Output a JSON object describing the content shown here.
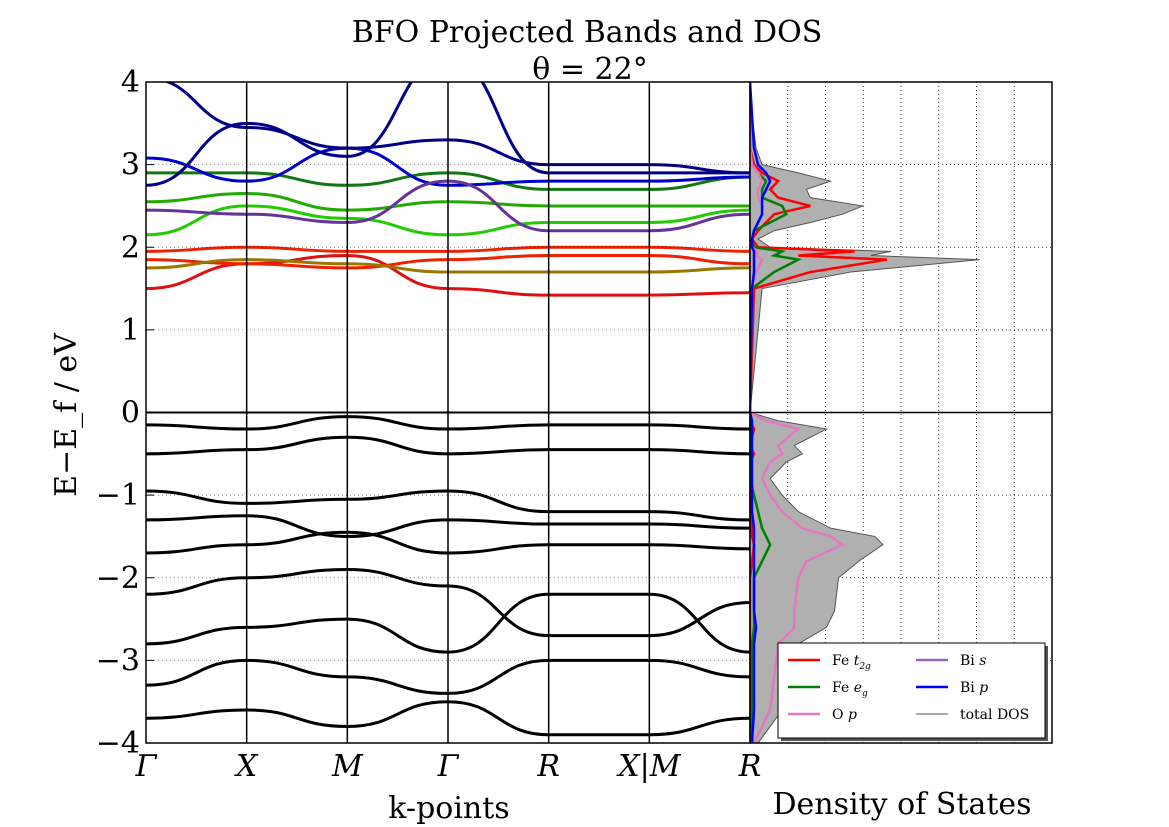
{
  "chart_data": [
    {
      "type": "line",
      "panel": "bands",
      "title": "BFO Projected Bands and DOS",
      "subtitle": "θ = 22°",
      "xlabel": "k-points",
      "ylabel": "E−E_f   /  eV",
      "ylim": [
        -4,
        4
      ],
      "yticks": [
        -4,
        -3,
        -2,
        -1,
        0,
        1,
        2,
        3,
        4
      ],
      "ytick_labels": [
        "−4",
        "−3",
        "−2",
        "−1",
        "0",
        "1",
        "2",
        "3",
        "4"
      ],
      "kpoints": [
        "Γ",
        "X",
        "M",
        "Γ",
        "R",
        "X|M",
        "R"
      ],
      "grid": false,
      "bands": [
        {
          "name": "",
          "color": "#000000",
          "values": [
            -0.95,
            -1.1,
            -1.05,
            -0.95,
            -1.2,
            -1.2,
            -1.3
          ]
        },
        {
          "name": "",
          "color": "#000000",
          "values": [
            -0.15,
            -0.2,
            -0.05,
            -0.2,
            -0.15,
            -0.15,
            -0.2
          ]
        },
        {
          "name": "",
          "color": "#000000",
          "values": [
            -0.5,
            -0.45,
            -0.3,
            -0.5,
            -0.45,
            -0.45,
            -0.5
          ]
        },
        {
          "name": "",
          "color": "#000000",
          "values": [
            -1.3,
            -1.25,
            -1.5,
            -1.3,
            -1.35,
            -1.35,
            -1.4
          ]
        },
        {
          "name": "",
          "color": "#000000",
          "values": [
            -1.7,
            -1.6,
            -1.45,
            -1.7,
            -1.6,
            -1.6,
            -1.65
          ]
        },
        {
          "name": "",
          "color": "#000000",
          "values": [
            -2.2,
            -2.0,
            -1.9,
            -2.1,
            -2.7,
            -2.7,
            -2.3
          ]
        },
        {
          "name": "",
          "color": "#000000",
          "values": [
            -2.8,
            -2.6,
            -2.5,
            -2.9,
            -2.2,
            -2.2,
            -2.9
          ]
        },
        {
          "name": "",
          "color": "#000000",
          "values": [
            -3.3,
            -3.0,
            -3.2,
            -3.4,
            -3.0,
            -3.0,
            -3.2
          ]
        },
        {
          "name": "",
          "color": "#000000",
          "values": [
            -3.7,
            -3.6,
            -3.8,
            -3.5,
            -3.9,
            -3.9,
            -3.7
          ]
        },
        {
          "name": "",
          "color": "#dd1111",
          "values": [
            1.5,
            1.8,
            1.9,
            1.5,
            1.42,
            1.42,
            1.45
          ]
        },
        {
          "name": "",
          "color": "#ee2200",
          "values": [
            1.85,
            1.8,
            1.75,
            1.85,
            1.9,
            1.9,
            1.8
          ]
        },
        {
          "name": "",
          "color": "#ee2200",
          "values": [
            1.95,
            2.0,
            1.95,
            1.95,
            2.0,
            2.0,
            1.95
          ]
        },
        {
          "name": "",
          "color": "#997700",
          "values": [
            1.75,
            1.85,
            1.8,
            1.7,
            1.7,
            1.7,
            1.75
          ]
        },
        {
          "name": "",
          "color": "#22cc00",
          "values": [
            2.15,
            2.5,
            2.35,
            2.15,
            2.3,
            2.3,
            2.45
          ]
        },
        {
          "name": "",
          "color": "#22aa00",
          "values": [
            2.55,
            2.65,
            2.45,
            2.55,
            2.5,
            2.5,
            2.5
          ]
        },
        {
          "name": "",
          "color": "#117711",
          "values": [
            2.9,
            2.9,
            2.75,
            2.9,
            2.7,
            2.7,
            2.85
          ]
        },
        {
          "name": "",
          "color": "#0000cc",
          "values": [
            3.08,
            2.8,
            3.2,
            2.75,
            2.8,
            2.8,
            2.85
          ]
        },
        {
          "name": "",
          "color": "#000088",
          "values": [
            2.75,
            3.5,
            3.1,
            4.3,
            2.9,
            2.9,
            2.9
          ]
        },
        {
          "name": "",
          "color": "#000088",
          "values": [
            4.05,
            3.45,
            3.2,
            3.3,
            3.0,
            3.0,
            2.9
          ]
        },
        {
          "name": "",
          "color": "#663399",
          "values": [
            2.45,
            2.4,
            2.3,
            2.8,
            2.2,
            2.2,
            2.4
          ]
        }
      ]
    },
    {
      "type": "area",
      "panel": "dos",
      "xlabel": "Density of States",
      "grid": true,
      "ylim": [
        -4,
        4
      ],
      "energy": [
        -4.0,
        -3.6,
        -3.2,
        -2.8,
        -2.6,
        -2.4,
        -2.0,
        -1.8,
        -1.6,
        -1.5,
        -1.4,
        -1.2,
        -1.0,
        -0.8,
        -0.6,
        -0.5,
        -0.4,
        -0.2,
        -0.1,
        0.0,
        1.5,
        1.7,
        1.85,
        1.9,
        1.95,
        2.0,
        2.1,
        2.2,
        2.3,
        2.4,
        2.5,
        2.6,
        2.7,
        2.8,
        2.9,
        3.0,
        3.2,
        3.6,
        4.0
      ],
      "total_dos": [
        0.2,
        0.8,
        0.9,
        1.2,
        1.9,
        2.1,
        2.2,
        2.7,
        3.3,
        3.1,
        2.0,
        1.2,
        0.8,
        0.5,
        0.9,
        1.3,
        1.1,
        1.9,
        0.7,
        0.0,
        0.3,
        2.5,
        5.7,
        3.0,
        3.5,
        0.5,
        0.2,
        0.6,
        1.5,
        2.3,
        2.8,
        1.5,
        1.4,
        2.0,
        1.2,
        0.3,
        0.15,
        0.05,
        0.0
      ],
      "legend": {
        "position": "lower-right",
        "entries": [
          {
            "name": "Fe t2g",
            "label_main": "Fe ",
            "label_sym": "t",
            "label_sub": "2g",
            "color": "#ff0000"
          },
          {
            "name": "Fe eg",
            "label_main": "Fe ",
            "label_sym": "e",
            "label_sub": "g",
            "color": "#008000"
          },
          {
            "name": "O p",
            "label_main": "O ",
            "label_sym": "p",
            "label_sub": "",
            "color": "#e377c2"
          },
          {
            "name": "Bi s",
            "label_main": "Bi ",
            "label_sym": "s",
            "label_sub": "",
            "color": "#9467bd"
          },
          {
            "name": "Bi p",
            "label_main": "Bi ",
            "label_sym": "p",
            "label_sub": "",
            "color": "#0000ff"
          },
          {
            "name": "total DOS",
            "label_main": "total DOS",
            "label_sym": "",
            "label_sub": "",
            "color": "#555555"
          }
        ]
      },
      "projections": [
        {
          "name": "Fe t2g",
          "color": "#ff0000",
          "values": [
            0,
            0,
            0,
            0,
            0,
            0,
            0,
            0.05,
            0.1,
            0.05,
            0.05,
            0,
            0,
            0,
            0,
            0.1,
            0,
            0.1,
            0,
            0,
            0.1,
            1.5,
            3.4,
            1.2,
            2.6,
            0.2,
            0.05,
            0.2,
            0.4,
            0.6,
            1.5,
            0.7,
            0.5,
            0.7,
            0.3,
            0.1,
            0,
            0,
            0
          ]
        },
        {
          "name": "Fe eg",
          "color": "#008000",
          "values": [
            0,
            0.05,
            0.05,
            0.05,
            0.1,
            0.1,
            0.1,
            0.3,
            0.5,
            0.4,
            0.3,
            0.2,
            0.1,
            0,
            0,
            0.05,
            0,
            0.05,
            0,
            0,
            0.05,
            0.6,
            1.2,
            0.6,
            0.8,
            0.1,
            0.05,
            0.1,
            0.5,
            0.9,
            0.8,
            0.3,
            0.3,
            0.4,
            0.2,
            0.05,
            0,
            0,
            0
          ]
        },
        {
          "name": "O p",
          "color": "#e377c2",
          "values": [
            0.1,
            0.5,
            0.6,
            0.7,
            1.1,
            1.1,
            1.2,
            1.4,
            2.3,
            2.0,
            1.3,
            0.8,
            0.5,
            0.3,
            0.5,
            0.8,
            0.7,
            1.2,
            0.4,
            0,
            0.05,
            0.15,
            0.3,
            0.15,
            0.2,
            0.05,
            0,
            0.1,
            0.2,
            0.3,
            0.3,
            0.2,
            0.2,
            0.3,
            0.2,
            0.05,
            0,
            0,
            0
          ]
        },
        {
          "name": "Bi p",
          "color": "#0000ff",
          "values": [
            0.05,
            0.1,
            0.1,
            0.1,
            0.15,
            0.1,
            0.1,
            0.1,
            0.1,
            0.1,
            0.1,
            0.05,
            0.05,
            0.05,
            0.05,
            0.05,
            0.05,
            0.05,
            0.05,
            0,
            0.05,
            0.1,
            0.1,
            0.1,
            0.1,
            0.05,
            0.05,
            0.1,
            0.2,
            0.3,
            0.3,
            0.3,
            0.4,
            0.5,
            0.4,
            0.2,
            0.1,
            0.05,
            0
          ]
        }
      ]
    }
  ]
}
